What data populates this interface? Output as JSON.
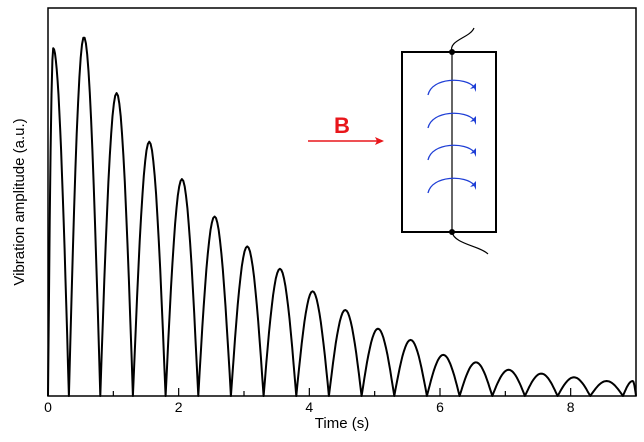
{
  "chart_data": {
    "type": "line",
    "title": "",
    "xlabel": "Time (s)",
    "ylabel": "Vibration amplitude (a.u.)",
    "xlim": [
      0,
      9
    ],
    "ylim": [
      0,
      1
    ],
    "x_ticks": [
      "0",
      "2",
      "4",
      "6",
      "8"
    ],
    "y_ticks_labeled": false,
    "grid": false,
    "legend": "none",
    "line_color": "#000000",
    "series": [
      {
        "peaks": [
          {
            "x": 0.08,
            "y": 0.93
          },
          {
            "x": 0.55,
            "y": 0.96
          },
          {
            "x": 1.05,
            "y": 0.81
          },
          {
            "x": 1.55,
            "y": 0.68
          },
          {
            "x": 2.05,
            "y": 0.58
          },
          {
            "x": 2.55,
            "y": 0.48
          },
          {
            "x": 3.05,
            "y": 0.4
          },
          {
            "x": 3.55,
            "y": 0.34
          },
          {
            "x": 4.05,
            "y": 0.28
          },
          {
            "x": 4.55,
            "y": 0.23
          },
          {
            "x": 5.05,
            "y": 0.18
          },
          {
            "x": 5.55,
            "y": 0.15
          },
          {
            "x": 6.05,
            "y": 0.11
          },
          {
            "x": 6.55,
            "y": 0.09
          },
          {
            "x": 7.05,
            "y": 0.07
          },
          {
            "x": 7.55,
            "y": 0.06
          },
          {
            "x": 8.05,
            "y": 0.05
          },
          {
            "x": 8.55,
            "y": 0.04
          },
          {
            "x": 8.95,
            "y": 0.04
          }
        ],
        "zeros": [
          0.0,
          0.32,
          0.8,
          1.3,
          1.8,
          2.3,
          2.8,
          3.3,
          3.8,
          4.3,
          4.8,
          5.3,
          5.8,
          6.3,
          6.8,
          7.3,
          7.8,
          8.3,
          8.8
        ]
      }
    ],
    "annotations": {
      "field_label": "B",
      "field_arrow_color": "#e8161b",
      "eddy_current_color": "#1f3fd6"
    }
  }
}
